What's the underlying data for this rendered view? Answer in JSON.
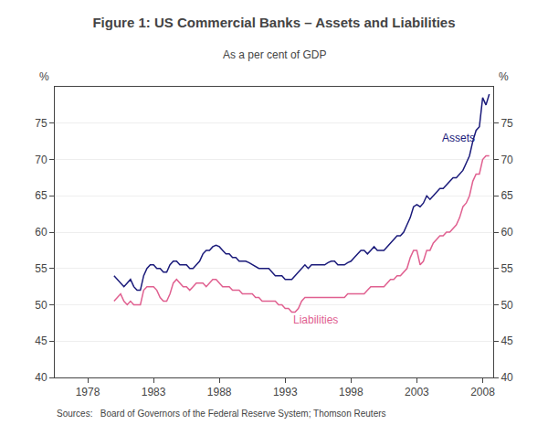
{
  "chart_data": {
    "type": "line",
    "title": "Figure 1: US Commercial Banks – Assets and Liabilities",
    "subtitle": "As a per cent of GDP",
    "source": "Sources:   Board of Governors of the Federal Reserve System; Thomson Reuters",
    "ylabel": "%",
    "y2label": "%",
    "xlim": [
      1975.5,
      2008.8
    ],
    "xticks": [
      1978,
      1983,
      1988,
      1993,
      1998,
      2003,
      2008
    ],
    "ylim": [
      40,
      80
    ],
    "yticks": [
      40,
      45,
      50,
      55,
      60,
      65,
      70,
      75
    ],
    "y2lim": [
      40,
      80
    ],
    "y2ticks": [
      40,
      45,
      50,
      55,
      60,
      65,
      70,
      75
    ],
    "grid": true,
    "x": [
      1980.0,
      1980.25,
      1980.5,
      1980.75,
      1981.0,
      1981.25,
      1981.5,
      1981.75,
      1982.0,
      1982.25,
      1982.5,
      1982.75,
      1983.0,
      1983.25,
      1983.5,
      1983.75,
      1984.0,
      1984.25,
      1984.5,
      1984.75,
      1985.0,
      1985.25,
      1985.5,
      1985.75,
      1986.0,
      1986.25,
      1986.5,
      1986.75,
      1987.0,
      1987.25,
      1987.5,
      1987.75,
      1988.0,
      1988.25,
      1988.5,
      1988.75,
      1989.0,
      1989.25,
      1989.5,
      1989.75,
      1990.0,
      1990.25,
      1990.5,
      1990.75,
      1991.0,
      1991.25,
      1991.5,
      1991.75,
      1992.0,
      1992.25,
      1992.5,
      1992.75,
      1993.0,
      1993.25,
      1993.5,
      1993.75,
      1994.0,
      1994.25,
      1994.5,
      1994.75,
      1995.0,
      1995.25,
      1995.5,
      1995.75,
      1996.0,
      1996.25,
      1996.5,
      1996.75,
      1997.0,
      1997.25,
      1997.5,
      1997.75,
      1998.0,
      1998.25,
      1998.5,
      1998.75,
      1999.0,
      1999.25,
      1999.5,
      1999.75,
      2000.0,
      2000.25,
      2000.5,
      2000.75,
      2001.0,
      2001.25,
      2001.5,
      2001.75,
      2002.0,
      2002.25,
      2002.5,
      2002.75,
      2003.0,
      2003.25,
      2003.5,
      2003.75,
      2004.0,
      2004.25,
      2004.5,
      2004.75,
      2005.0,
      2005.25,
      2005.5,
      2005.75,
      2006.0,
      2006.25,
      2006.5,
      2006.75,
      2007.0,
      2007.25,
      2007.5,
      2007.75,
      2008.0,
      2008.25,
      2008.5
    ],
    "series": [
      {
        "name": "Assets",
        "color": "#1a1a7a",
        "values": [
          54.0,
          53.5,
          53.0,
          52.5,
          53.0,
          53.5,
          52.5,
          52.0,
          52.0,
          54.0,
          55.0,
          55.5,
          55.5,
          55.0,
          55.0,
          54.5,
          54.5,
          55.5,
          56.0,
          56.0,
          55.5,
          55.5,
          55.5,
          55.0,
          55.0,
          55.5,
          56.0,
          57.0,
          57.5,
          57.5,
          58.0,
          58.2,
          58.0,
          57.5,
          57.0,
          57.0,
          56.5,
          56.5,
          56.0,
          56.0,
          56.0,
          55.8,
          55.5,
          55.2,
          55.0,
          55.0,
          55.0,
          55.0,
          54.5,
          54.0,
          54.0,
          54.0,
          53.5,
          53.5,
          53.5,
          54.0,
          54.5,
          55.0,
          55.5,
          55.0,
          55.5,
          55.5,
          55.5,
          55.5,
          55.5,
          55.8,
          56.0,
          56.0,
          55.5,
          55.5,
          55.5,
          55.8,
          56.0,
          56.5,
          57.0,
          57.5,
          57.5,
          57.0,
          57.5,
          58.0,
          57.5,
          57.5,
          57.5,
          58.0,
          58.5,
          59.0,
          59.5,
          59.5,
          60.0,
          61.0,
          62.0,
          63.5,
          63.8,
          63.5,
          64.0,
          65.0,
          64.5,
          65.0,
          65.5,
          66.0,
          66.0,
          66.5,
          67.0,
          67.5,
          67.5,
          68.0,
          68.5,
          69.5,
          70.5,
          72.5,
          74.0,
          74.5,
          78.5,
          77.5,
          79.0
        ]
      },
      {
        "name": "Liabilities",
        "color": "#e06090",
        "values": [
          50.5,
          51.0,
          51.5,
          50.5,
          50.0,
          50.5,
          50.0,
          50.0,
          50.0,
          52.0,
          52.5,
          52.5,
          52.5,
          52.0,
          51.0,
          50.5,
          50.5,
          51.5,
          53.0,
          53.5,
          53.0,
          52.5,
          52.5,
          52.0,
          52.5,
          53.0,
          53.0,
          53.0,
          52.5,
          53.0,
          53.5,
          53.5,
          53.0,
          52.5,
          52.5,
          52.5,
          52.0,
          52.0,
          52.0,
          51.5,
          51.5,
          51.5,
          51.5,
          51.0,
          51.0,
          50.5,
          50.5,
          50.5,
          50.5,
          50.5,
          50.0,
          50.0,
          49.5,
          49.5,
          49.0,
          49.0,
          49.5,
          50.5,
          51.0,
          51.0,
          51.0,
          51.0,
          51.0,
          51.0,
          51.0,
          51.0,
          51.0,
          51.0,
          51.0,
          51.0,
          51.0,
          51.5,
          51.5,
          51.5,
          51.5,
          51.5,
          51.5,
          52.0,
          52.5,
          52.5,
          52.5,
          52.5,
          52.5,
          53.0,
          53.5,
          53.5,
          54.0,
          54.0,
          54.5,
          55.0,
          56.5,
          57.5,
          57.5,
          55.5,
          56.0,
          57.5,
          57.5,
          58.5,
          59.0,
          59.5,
          59.5,
          60.0,
          60.0,
          60.5,
          61.0,
          62.0,
          63.5,
          64.0,
          65.0,
          67.0,
          68.0,
          68.0,
          70.0,
          70.5,
          70.5
        ]
      }
    ],
    "annotations": [
      {
        "text": "Assets",
        "x": 2004.8,
        "y": 71.8,
        "color": "#1a1a7a"
      },
      {
        "text": "Liabilities",
        "x": 1993.5,
        "y": 46.8,
        "color": "#e06090"
      }
    ]
  }
}
